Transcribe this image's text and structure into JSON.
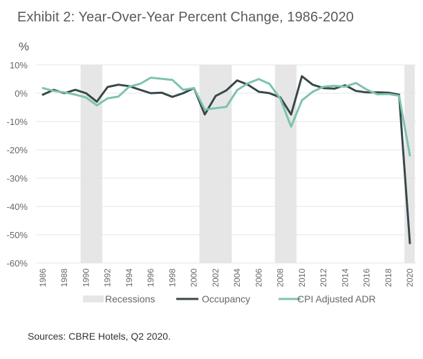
{
  "header": {
    "title": "Exhibit 2: Year-Over-Year  Percent Change, 1986-2020",
    "unit_label": "%"
  },
  "footer": {
    "source": "Sources: CBRE Hotels, Q2 2020."
  },
  "colors": {
    "occupancy": "#37474a",
    "adr": "#7cc3ad",
    "recession": "#e6e6e6",
    "grid": "#e4e4e4"
  },
  "chart_data": {
    "type": "line",
    "title": "Exhibit 2: Year-Over-Year  Percent Change, 1986-2020",
    "xlabel": "",
    "ylabel": "%",
    "ylim": [
      -60,
      10
    ],
    "yticks": [
      10,
      0,
      -10,
      -20,
      -30,
      -40,
      -50,
      -60
    ],
    "ytick_labels": [
      "10%",
      "0%",
      "-10%",
      "-20%",
      "-30%",
      "-40%",
      "-50%",
      "-60%"
    ],
    "xlim": [
      1986,
      2020
    ],
    "xtick_labels": [
      "1986",
      "1988",
      "1990",
      "1992",
      "1994",
      "1996",
      "1998",
      "2000",
      "2002",
      "2004",
      "2006",
      "2008",
      "2010",
      "2012",
      "2014",
      "2016",
      "2018",
      "2020"
    ],
    "grid": true,
    "legend_position": "bottom",
    "x": [
      1986,
      1987,
      1988,
      1989,
      1990,
      1991,
      1992,
      1993,
      1994,
      1995,
      1996,
      1997,
      1998,
      1999,
      2000,
      2001,
      2002,
      2003,
      2004,
      2005,
      2006,
      2007,
      2008,
      2009,
      2010,
      2011,
      2012,
      2013,
      2014,
      2015,
      2016,
      2017,
      2018,
      2019,
      2020
    ],
    "series": [
      {
        "name": "Occupancy",
        "values": [
          -0.5,
          1.2,
          0,
          1.2,
          0,
          -3,
          2.2,
          3,
          2.5,
          1.2,
          0,
          0.2,
          -1.3,
          0,
          1.8,
          -7.5,
          -1,
          1,
          4.5,
          3,
          0.5,
          0,
          -1.5,
          -7.5,
          6,
          3,
          1.8,
          1.6,
          2.8,
          0.8,
          0.3,
          0.3,
          0.2,
          -0.5,
          -53
        ]
      },
      {
        "name": "CPI Adjusted ADR",
        "values": [
          1.8,
          0.8,
          0.3,
          -0.5,
          -1.5,
          -4.3,
          -1.8,
          -1.2,
          2.3,
          3.3,
          5.5,
          5.1,
          4.7,
          1.2,
          1.8,
          -5.8,
          -5.3,
          -4.8,
          1.1,
          3.5,
          5,
          3.3,
          -2,
          -11.8,
          -2.5,
          0.5,
          2.3,
          2.6,
          2.3,
          3.6,
          1.3,
          -0.4,
          -0.3,
          -0.9,
          -22
        ]
      }
    ],
    "recessions": [
      {
        "start": 1989.5,
        "end": 1991.5
      },
      {
        "start": 2000.5,
        "end": 2003.5
      },
      {
        "start": 2007.5,
        "end": 2009.5
      },
      {
        "start": 2019.5,
        "end": 2020.5
      }
    ],
    "legend": [
      {
        "name": "Recessions",
        "kind": "band"
      },
      {
        "name": "Occupancy",
        "kind": "line"
      },
      {
        "name": "CPI Adjusted ADR",
        "kind": "line"
      }
    ]
  }
}
